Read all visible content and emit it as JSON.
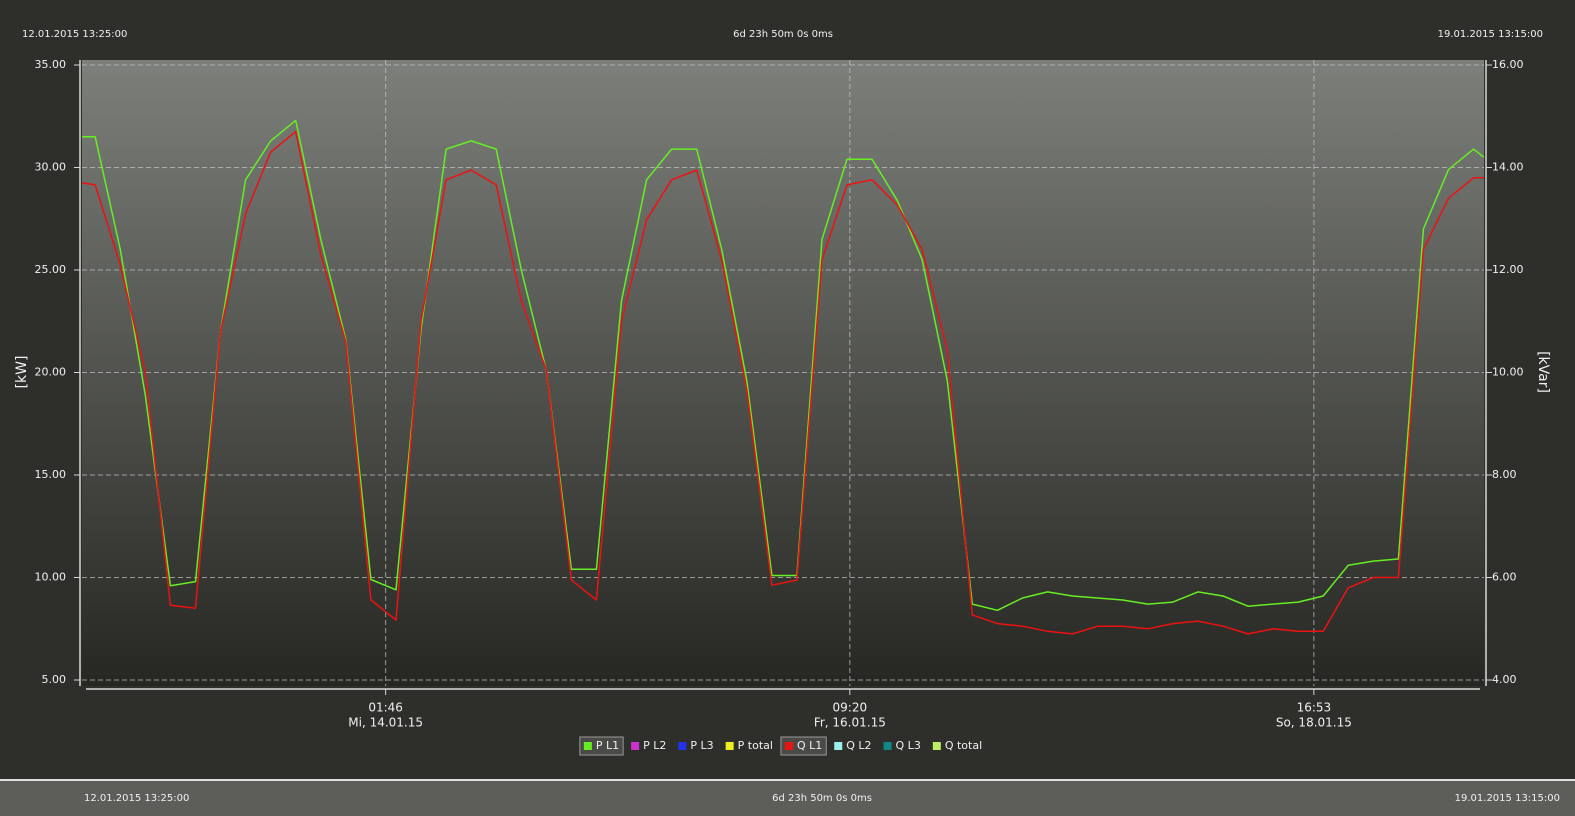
{
  "chart_data": {
    "type": "line",
    "span": "6d 23h 50m 0s 0ms",
    "ylabel": "[kW]",
    "y2label": "[kVar]",
    "xlim": [
      "12.01.2015 13:25:00",
      "19.01.2015 13:15:00"
    ],
    "xticks": [
      {
        "value": "14.01.2015 01:46:00",
        "label": [
          "01:46",
          "Mi, 14.01.15"
        ]
      },
      {
        "value": "16.01.2015 09:20:00",
        "label": [
          "09:20",
          "Fr, 16.01.15"
        ]
      },
      {
        "value": "18.01.2015 16:53:00",
        "label": [
          "16:53",
          "So, 18.01.15"
        ]
      }
    ],
    "ylim": [
      5,
      35
    ],
    "yticks": [
      {
        "value": 5,
        "label": "5.00"
      },
      {
        "value": 10,
        "label": "10.00"
      },
      {
        "value": 15,
        "label": "15.00"
      },
      {
        "value": 20,
        "label": "20.00"
      },
      {
        "value": 25,
        "label": "25.00"
      },
      {
        "value": 30,
        "label": "30.00"
      },
      {
        "value": 35,
        "label": "35.00"
      }
    ],
    "y2lim": [
      4,
      16
    ],
    "y2ticks": [
      {
        "value": 4,
        "label": "4.00"
      },
      {
        "value": 6,
        "label": "6.00"
      },
      {
        "value": 8,
        "label": "8.00"
      },
      {
        "value": 10,
        "label": "10.00"
      },
      {
        "value": 12,
        "label": "12.00"
      },
      {
        "value": 14,
        "label": "14.00"
      },
      {
        "value": 16,
        "label": "16.00"
      }
    ],
    "grid": true,
    "x": [
      "12.01.2015 13:25:00",
      "12.01.2015 15:00:00",
      "12.01.2015 18:00:00",
      "12.01.2015 21:00:00",
      "13.01.2015 00:00:00",
      "13.01.2015 03:00:00",
      "13.01.2015 06:00:00",
      "13.01.2015 09:00:00",
      "13.01.2015 12:00:00",
      "13.01.2015 15:00:00",
      "13.01.2015 18:00:00",
      "13.01.2015 21:00:00",
      "14.01.2015 00:00:00",
      "14.01.2015 03:00:00",
      "14.01.2015 06:00:00",
      "14.01.2015 09:00:00",
      "14.01.2015 12:00:00",
      "14.01.2015 15:00:00",
      "14.01.2015 18:00:00",
      "14.01.2015 21:00:00",
      "15.01.2015 00:00:00",
      "15.01.2015 03:00:00",
      "15.01.2015 06:00:00",
      "15.01.2015 09:00:00",
      "15.01.2015 12:00:00",
      "15.01.2015 15:00:00",
      "15.01.2015 18:00:00",
      "15.01.2015 21:00:00",
      "16.01.2015 00:00:00",
      "16.01.2015 03:00:00",
      "16.01.2015 06:00:00",
      "16.01.2015 09:00:00",
      "16.01.2015 12:00:00",
      "16.01.2015 15:00:00",
      "16.01.2015 18:00:00",
      "16.01.2015 21:00:00",
      "17.01.2015 00:00:00",
      "17.01.2015 03:00:00",
      "17.01.2015 06:00:00",
      "17.01.2015 09:00:00",
      "17.01.2015 12:00:00",
      "17.01.2015 15:00:00",
      "17.01.2015 18:00:00",
      "17.01.2015 21:00:00",
      "18.01.2015 00:00:00",
      "18.01.2015 03:00:00",
      "18.01.2015 06:00:00",
      "18.01.2015 09:00:00",
      "18.01.2015 12:00:00",
      "18.01.2015 15:00:00",
      "18.01.2015 18:00:00",
      "18.01.2015 21:00:00",
      "19.01.2015 00:00:00",
      "19.01.2015 03:00:00",
      "19.01.2015 06:00:00",
      "19.01.2015 09:00:00",
      "19.01.2015 12:00:00",
      "19.01.2015 13:15:00"
    ],
    "series": [
      {
        "name": "P L1",
        "color": "#66ee22",
        "values": [
          31.5,
          31.5,
          26,
          18.9,
          9.6,
          9.8,
          22,
          29.4,
          31.3,
          32.3,
          26.5,
          21.6,
          9.9,
          9.4,
          22.1,
          30.9,
          31.3,
          30.9,
          25,
          20.1,
          10.4,
          10.4,
          23.5,
          29.4,
          30.9,
          30.9,
          26,
          19.6,
          10.1,
          10.1,
          26.5,
          30.4,
          30.4,
          28.4,
          25.5,
          19.6,
          8.7,
          8.4,
          9.0,
          9.3,
          9.1,
          9.0,
          8.9,
          8.7,
          8.8,
          9.3,
          9.1,
          8.6,
          8.7,
          8.8,
          9.1,
          10.6,
          10.8,
          10.9,
          27,
          29.9,
          30.9,
          30.5
        ]
      },
      {
        "name": "P L2",
        "color": "#cc33cc",
        "values": [
          null,
          null,
          null,
          null,
          null,
          null,
          null,
          null,
          null,
          null,
          null,
          null,
          null,
          null,
          null,
          null,
          null,
          null,
          null,
          null,
          null,
          null,
          null,
          null,
          null,
          null,
          null,
          null,
          null,
          null,
          null,
          null,
          null,
          null,
          null,
          null,
          null,
          null,
          null,
          null,
          null,
          null,
          null,
          null,
          null,
          null,
          null,
          null,
          null,
          null,
          null,
          null,
          null,
          null,
          null,
          null,
          null,
          null
        ]
      },
      {
        "name": "P L3",
        "color": "#2233ee",
        "values": [
          null,
          null,
          null,
          null,
          null,
          null,
          null,
          null,
          null,
          null,
          null,
          null,
          null,
          null,
          null,
          null,
          null,
          null,
          null,
          null,
          null,
          null,
          null,
          null,
          null,
          null,
          null,
          null,
          null,
          null,
          null,
          null,
          null,
          null,
          null,
          null,
          null,
          null,
          null,
          null,
          null,
          null,
          null,
          null,
          null,
          null,
          null,
          null,
          null,
          null,
          null,
          null,
          null,
          null,
          null,
          null,
          null,
          null
        ]
      },
      {
        "name": "P total",
        "color": "#eeee22",
        "values": [
          null,
          null,
          null,
          null,
          null,
          null,
          null,
          null,
          null,
          null,
          null,
          null,
          null,
          null,
          null,
          null,
          null,
          null,
          null,
          null,
          null,
          null,
          null,
          null,
          null,
          null,
          null,
          null,
          null,
          null,
          null,
          null,
          null,
          null,
          null,
          null,
          null,
          null,
          null,
          null,
          null,
          null,
          null,
          null,
          null,
          null,
          null,
          null,
          null,
          null,
          null,
          null,
          null,
          null,
          null,
          null,
          null,
          null
        ]
      },
      {
        "name": "Q L1",
        "color": "#ee1111",
        "axis": "y2",
        "values": [
          13.7,
          13.66,
          12.1,
          10.0,
          5.46,
          5.4,
          10.8,
          13.1,
          14.3,
          14.7,
          12.3,
          10.6,
          5.56,
          5.17,
          11.0,
          13.76,
          13.95,
          13.66,
          11.4,
          10.05,
          5.95,
          5.56,
          11.0,
          12.98,
          13.76,
          13.95,
          12.2,
          9.66,
          5.85,
          5.95,
          12.2,
          13.66,
          13.76,
          13.27,
          12.39,
          10.44,
          5.27,
          5.1,
          5.05,
          4.95,
          4.9,
          5.05,
          5.05,
          5.0,
          5.1,
          5.15,
          5.05,
          4.9,
          5.0,
          4.95,
          4.95,
          5.8,
          6.0,
          6.0,
          12.4,
          13.4,
          13.8,
          13.8
        ]
      },
      {
        "name": "Q L2",
        "color": "#99eeee",
        "axis": "y2",
        "values": [
          null,
          null,
          null,
          null,
          null,
          null,
          null,
          null,
          null,
          null,
          null,
          null,
          null,
          null,
          null,
          null,
          null,
          null,
          null,
          null,
          null,
          null,
          null,
          null,
          null,
          null,
          null,
          null,
          null,
          null,
          null,
          null,
          null,
          null,
          null,
          null,
          null,
          null,
          null,
          null,
          null,
          null,
          null,
          null,
          null,
          null,
          null,
          null,
          null,
          null,
          null,
          null,
          null,
          null,
          null,
          null,
          null,
          null
        ]
      },
      {
        "name": "Q L3",
        "color": "#118888",
        "axis": "y2",
        "values": [
          null,
          null,
          null,
          null,
          null,
          null,
          null,
          null,
          null,
          null,
          null,
          null,
          null,
          null,
          null,
          null,
          null,
          null,
          null,
          null,
          null,
          null,
          null,
          null,
          null,
          null,
          null,
          null,
          null,
          null,
          null,
          null,
          null,
          null,
          null,
          null,
          null,
          null,
          null,
          null,
          null,
          null,
          null,
          null,
          null,
          null,
          null,
          null,
          null,
          null,
          null,
          null,
          null,
          null,
          null,
          null,
          null,
          null
        ]
      },
      {
        "name": "Q total",
        "color": "#bbee66",
        "axis": "y2",
        "values": [
          null,
          null,
          null,
          null,
          null,
          null,
          null,
          null,
          null,
          null,
          null,
          null,
          null,
          null,
          null,
          null,
          null,
          null,
          null,
          null,
          null,
          null,
          null,
          null,
          null,
          null,
          null,
          null,
          null,
          null,
          null,
          null,
          null,
          null,
          null,
          null,
          null,
          null,
          null,
          null,
          null,
          null,
          null,
          null,
          null,
          null,
          null,
          null,
          null,
          null,
          null,
          null,
          null,
          null,
          null,
          null,
          null,
          null
        ]
      }
    ]
  }
}
